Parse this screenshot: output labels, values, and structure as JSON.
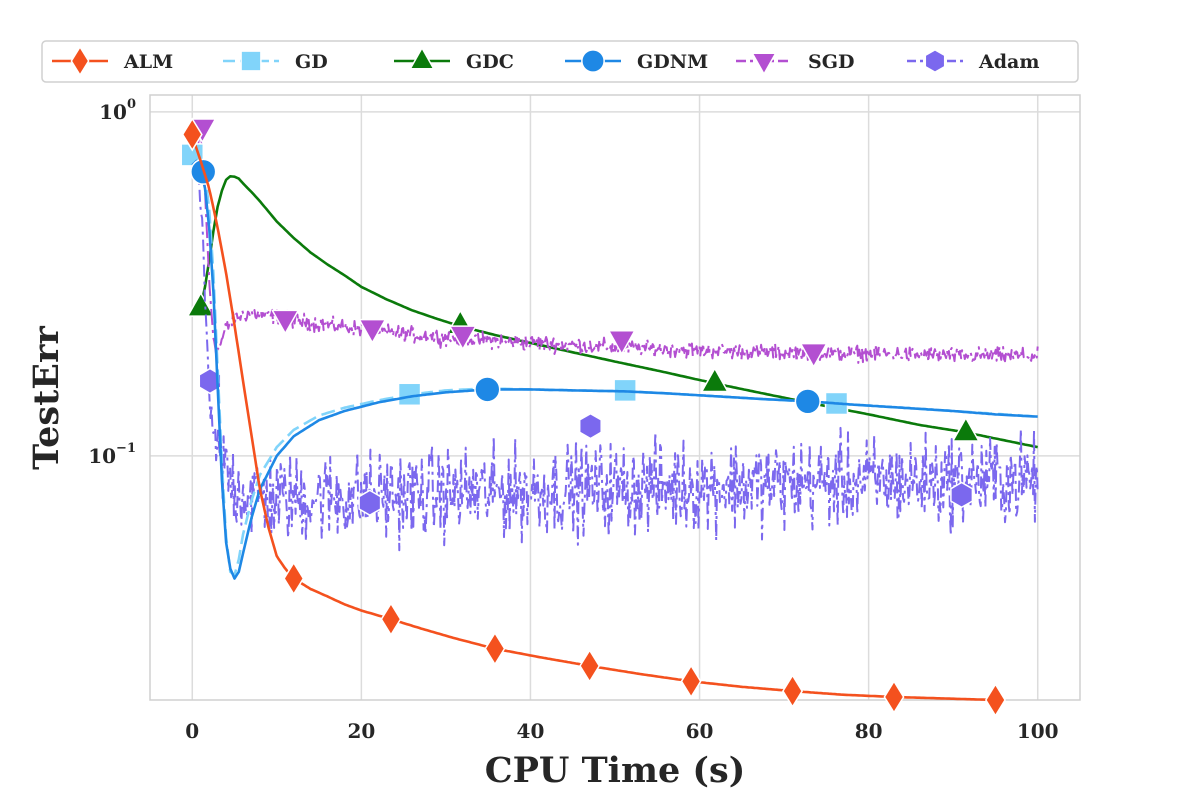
{
  "chart_data": {
    "type": "line",
    "title": "",
    "xlabel": "CPU Time (s)",
    "ylabel": "TestErr",
    "yscale": "log",
    "xlim": [
      -5,
      105
    ],
    "ylim": [
      0.0195,
      1.12
    ],
    "grid": true,
    "legend_position": "top",
    "x_ticks": [
      {
        "value": 0,
        "label": "0"
      },
      {
        "value": 20,
        "label": "20"
      },
      {
        "value": 40,
        "label": "40"
      },
      {
        "value": 60,
        "label": "60"
      },
      {
        "value": 80,
        "label": "80"
      },
      {
        "value": 100,
        "label": "100"
      }
    ],
    "y_ticks": [
      {
        "value": 1,
        "base": "10",
        "exp": "0"
      },
      {
        "value": 0.1,
        "base": "10",
        "exp": "−1"
      }
    ],
    "series": [
      {
        "name": "ALM",
        "color": "#f4511e",
        "marker": "diamond",
        "dash": "",
        "x": [
          0,
          1,
          2,
          3,
          4,
          5,
          6,
          7,
          8,
          9,
          10,
          11,
          12,
          14,
          16,
          18,
          20,
          23.5,
          27,
          31,
          35.8,
          41,
          47,
          53,
          59,
          65,
          71,
          77,
          83,
          89,
          95
        ],
        "y": [
          0.85,
          0.72,
          0.6,
          0.46,
          0.34,
          0.24,
          0.165,
          0.115,
          0.08,
          0.062,
          0.051,
          0.047,
          0.044,
          0.041,
          0.039,
          0.037,
          0.0355,
          0.0335,
          0.0315,
          0.0295,
          0.0275,
          0.026,
          0.0245,
          0.0232,
          0.0221,
          0.0213,
          0.0207,
          0.0202,
          0.0199,
          0.0197,
          0.0195
        ],
        "markers_x": [
          0,
          12,
          23.5,
          35.8,
          47,
          59,
          71,
          83,
          95
        ],
        "markers_y": [
          0.86,
          0.044,
          0.0335,
          0.0275,
          0.0245,
          0.0221,
          0.0207,
          0.0199,
          0.0195
        ]
      },
      {
        "name": "GD",
        "color": "#81d4fa",
        "marker": "square",
        "dash": "14,6",
        "x": [
          0,
          1,
          1.5,
          2,
          2.5,
          3,
          3.5,
          4,
          4.5,
          5,
          5.5,
          6,
          7,
          8,
          10,
          12,
          15,
          18,
          22,
          26,
          30,
          35,
          40,
          45,
          51,
          56,
          62,
          68,
          72.5,
          76,
          82,
          88,
          94,
          100
        ],
        "y": [
          0.75,
          0.72,
          0.66,
          0.52,
          0.34,
          0.18,
          0.095,
          0.058,
          0.046,
          0.045,
          0.05,
          0.059,
          0.074,
          0.088,
          0.106,
          0.119,
          0.131,
          0.138,
          0.145,
          0.151,
          0.155,
          0.157,
          0.156,
          0.155,
          0.154,
          0.152,
          0.149,
          0.146,
          0.144,
          0.142,
          0.139,
          0.136,
          0.133,
          0.13
        ],
        "markers_x": [
          0,
          25.7,
          51.2,
          76.2
        ],
        "markers_y": [
          0.75,
          0.151,
          0.155,
          0.142
        ]
      },
      {
        "name": "GDC",
        "color": "#0b7a0b",
        "marker": "triangle-up",
        "dash": "",
        "x": [
          0,
          0.5,
          1,
          1.5,
          2,
          2.5,
          3,
          3.5,
          4,
          4.5,
          5,
          5.5,
          6,
          7,
          8,
          10,
          12,
          14,
          16,
          18,
          20,
          23,
          26,
          29,
          32,
          36,
          40,
          45,
          50,
          55,
          62,
          68,
          74,
          80,
          86,
          91.5,
          96,
          100
        ],
        "y": [
          0.26,
          0.26,
          0.27,
          0.31,
          0.37,
          0.45,
          0.53,
          0.59,
          0.635,
          0.65,
          0.648,
          0.64,
          0.62,
          0.585,
          0.55,
          0.48,
          0.43,
          0.39,
          0.36,
          0.335,
          0.31,
          0.285,
          0.265,
          0.25,
          0.237,
          0.224,
          0.213,
          0.2,
          0.188,
          0.177,
          0.162,
          0.151,
          0.141,
          0.132,
          0.123,
          0.117,
          0.111,
          0.106
        ],
        "markers_x": [
          1,
          31.7,
          61.8,
          91.5
        ],
        "markers_y": [
          0.27,
          0.24,
          0.163,
          0.117
        ]
      },
      {
        "name": "GDNM",
        "color": "#1e88e5",
        "marker": "circle",
        "dash": "",
        "x": [
          0,
          0.5,
          1,
          1.5,
          2,
          2.5,
          3,
          3.5,
          4,
          4.5,
          5,
          5.5,
          6,
          7,
          8,
          10,
          12,
          15,
          18,
          22,
          26,
          30,
          35,
          40,
          45,
          51,
          56,
          62,
          68,
          73,
          78,
          84,
          90,
          95,
          100
        ],
        "y": [
          0.7,
          0.72,
          0.68,
          0.6,
          0.46,
          0.3,
          0.16,
          0.085,
          0.056,
          0.047,
          0.044,
          0.046,
          0.052,
          0.066,
          0.08,
          0.1,
          0.114,
          0.127,
          0.135,
          0.143,
          0.149,
          0.153,
          0.156,
          0.156,
          0.155,
          0.154,
          0.152,
          0.149,
          0.146,
          0.144,
          0.141,
          0.138,
          0.135,
          0.132,
          0.13
        ],
        "markers_x": [
          1.3,
          34.9,
          72.8
        ],
        "markers_y": [
          0.67,
          0.156,
          0.144
        ]
      },
      {
        "name": "SGD",
        "color": "#b34fd1",
        "marker": "triangle-down",
        "dash": "16,5,3,5",
        "x": [
          0.5,
          1,
          1.5,
          2,
          2.5,
          3,
          4,
          5,
          6,
          7,
          8,
          9,
          10,
          12,
          15,
          18,
          21,
          25,
          30,
          35,
          40,
          45,
          50,
          55,
          60,
          65,
          70,
          75,
          80,
          85,
          90,
          95,
          100
        ],
        "y": [
          0.75,
          0.9,
          0.6,
          0.32,
          0.22,
          0.2,
          0.235,
          0.25,
          0.258,
          0.26,
          0.258,
          0.255,
          0.253,
          0.248,
          0.242,
          0.237,
          0.232,
          0.226,
          0.221,
          0.217,
          0.213,
          0.21,
          0.207,
          0.205,
          0.203,
          0.201,
          0.2,
          0.199,
          0.198,
          0.197,
          0.196,
          0.196,
          0.195
        ],
        "noise": 0.035,
        "markers_x": [
          1.2,
          11,
          21.3,
          32,
          50.8,
          73.5
        ],
        "markers_y": [
          0.9,
          0.25,
          0.235,
          0.225,
          0.218,
          0.2
        ]
      },
      {
        "name": "Adam",
        "color": "#7b68ee",
        "marker": "hexagon",
        "dash": "12,5,3,5",
        "x": [
          0.5,
          1,
          1.5,
          2,
          2.5,
          3,
          4,
          5,
          6,
          8,
          10,
          12,
          15,
          20,
          25,
          30,
          40,
          50,
          60,
          70,
          80,
          90,
          100
        ],
        "y": [
          0.7,
          0.55,
          0.3,
          0.15,
          0.11,
          0.1,
          0.09,
          0.082,
          0.078,
          0.076,
          0.075,
          0.075,
          0.076,
          0.076,
          0.077,
          0.078,
          0.079,
          0.081,
          0.082,
          0.083,
          0.084,
          0.085,
          0.086
        ],
        "noise": 0.2,
        "markers_x": [
          2.1,
          21,
          47.1,
          91
        ],
        "markers_y": [
          0.165,
          0.073,
          0.122,
          0.077
        ]
      }
    ]
  }
}
